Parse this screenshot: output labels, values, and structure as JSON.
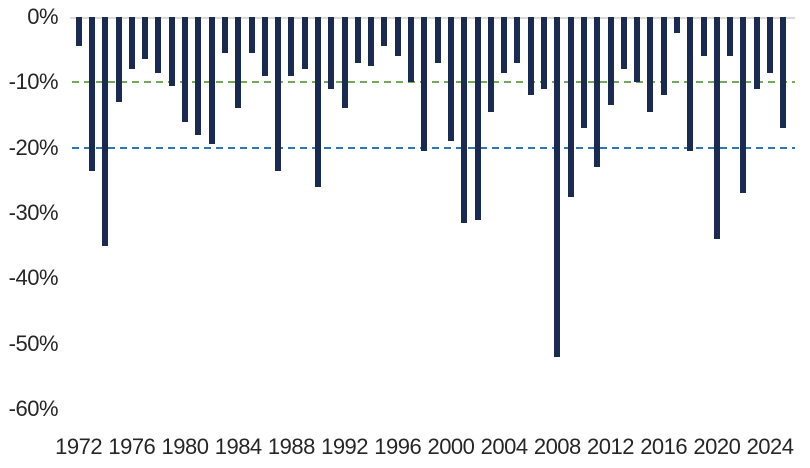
{
  "chart_data": {
    "type": "bar",
    "title": "",
    "xlabel": "",
    "ylabel": "",
    "unit": "%",
    "grid": false,
    "legend": false,
    "ylim": [
      -60,
      0
    ],
    "categories": [
      1972,
      1973,
      1974,
      1975,
      1976,
      1977,
      1978,
      1979,
      1980,
      1981,
      1982,
      1983,
      1984,
      1985,
      1986,
      1987,
      1988,
      1989,
      1990,
      1991,
      1992,
      1993,
      1994,
      1995,
      1996,
      1997,
      1998,
      1999,
      2000,
      2001,
      2002,
      2003,
      2004,
      2005,
      2006,
      2007,
      2008,
      2009,
      2010,
      2011,
      2012,
      2013,
      2014,
      2015,
      2016,
      2017,
      2018,
      2019,
      2020,
      2021,
      2022,
      2023,
      2024,
      2025
    ],
    "values": [
      -4.5,
      -23.5,
      -35,
      -13,
      -8,
      -6.5,
      -8.5,
      -10.5,
      -16,
      -18,
      -19.5,
      -5.5,
      -14,
      -5.5,
      -9,
      -23.5,
      -9,
      -8,
      -26,
      -11,
      -14,
      -7,
      -7.5,
      -4.5,
      -6,
      -10,
      -20.5,
      -7,
      -19,
      -31.5,
      -31,
      -14.5,
      -8.5,
      -7,
      -12,
      -11,
      -52,
      -27.5,
      -17,
      -23,
      -13.5,
      -8,
      -10,
      -14.5,
      -12,
      -2.5,
      -20.5,
      -6,
      -34,
      -6,
      -27,
      -11,
      -8.5,
      -17
    ],
    "y_tick_labels": [
      "0%",
      "-10%",
      "-20%",
      "-30%",
      "-40%",
      "-50%",
      "-60%"
    ],
    "y_tick_values": [
      0,
      -10,
      -20,
      -30,
      -40,
      -50,
      -60
    ],
    "x_tick_years": [
      1972,
      1976,
      1980,
      1984,
      1988,
      1992,
      1996,
      2000,
      2004,
      2008,
      2012,
      2016,
      2020,
      2024
    ],
    "bar_color": "#1b2b4f",
    "baseline_color": "#d9d9d9",
    "text_color": "#262626",
    "reference_lines": [
      {
        "value": -10,
        "color": "#74a85c",
        "style": "dashed"
      },
      {
        "value": -20,
        "color": "#2e75b6",
        "style": "dashed"
      }
    ]
  }
}
